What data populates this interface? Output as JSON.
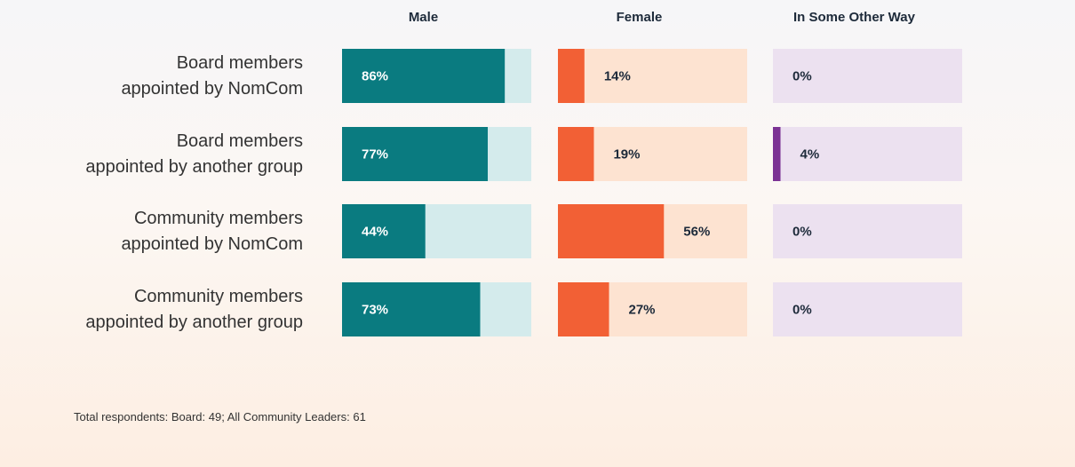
{
  "chart_data": {
    "type": "bar",
    "categories": [
      "Board members\nappointed by NomCom",
      "Board members\nappointed by another group",
      "Community members\nappointed by NomCom",
      "Community members\nappointed by another group"
    ],
    "series": [
      {
        "name": "Male",
        "color": "#0a7b80",
        "track_color": "#d4ebec",
        "values": [
          86,
          77,
          44,
          73
        ],
        "value_labels": [
          "86%",
          "77%",
          "44%",
          "73%"
        ]
      },
      {
        "name": "Female",
        "color": "#f26035",
        "track_color": "#fde3d1",
        "values": [
          14,
          19,
          56,
          27
        ],
        "value_labels": [
          "14%",
          "19%",
          "56%",
          "27%"
        ]
      },
      {
        "name": "In Some Other Way",
        "color": "#7b3294",
        "track_color": "#ece1f0",
        "values": [
          0,
          4,
          0,
          0
        ],
        "value_labels": [
          "0%",
          "4%",
          "0%",
          "0%"
        ]
      }
    ],
    "xlim": [
      0,
      100
    ],
    "note": "Total respondents: Board: 49; All Community Leaders: 61"
  }
}
